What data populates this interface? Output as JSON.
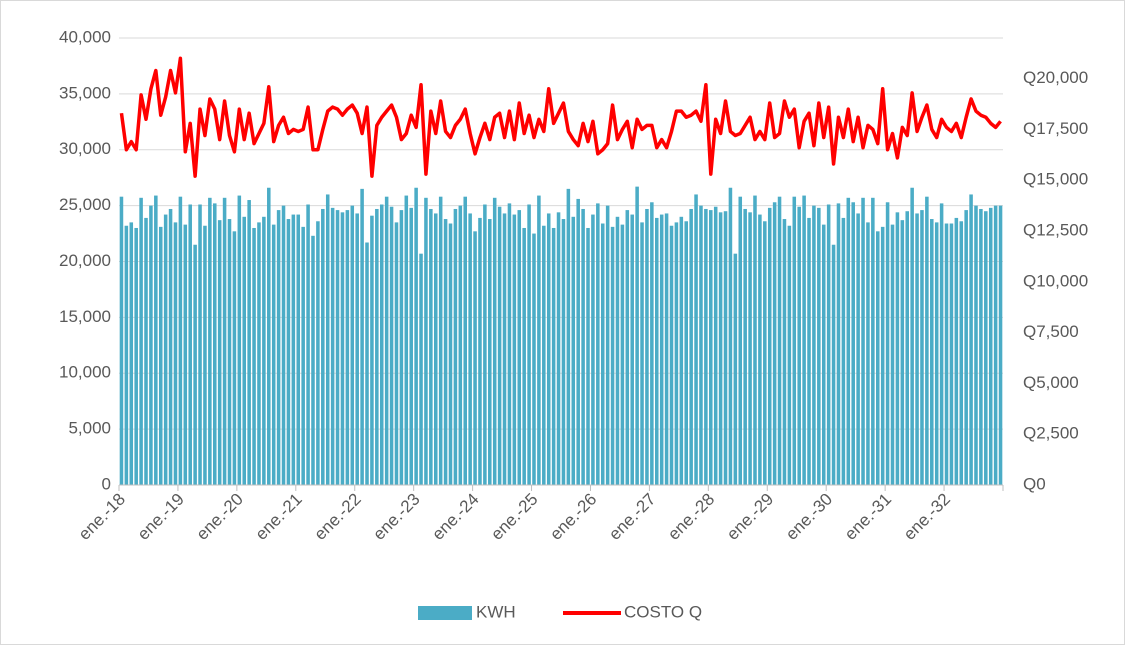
{
  "chart_data": {
    "type": "bar_line",
    "categories": [
      "ene.-18",
      null,
      null,
      null,
      null,
      null,
      null,
      null,
      null,
      null,
      null,
      null,
      "ene.-19",
      null,
      null,
      null,
      null,
      null,
      null,
      null,
      null,
      null,
      null,
      null,
      "ene.-20",
      null,
      null,
      null,
      null,
      null,
      null,
      null,
      null,
      null,
      null,
      null,
      "ene.-21",
      null,
      null,
      null,
      null,
      null,
      null,
      null,
      null,
      null,
      null,
      null,
      "ene.-22",
      null,
      null,
      null,
      null,
      null,
      null,
      null,
      null,
      null,
      null,
      null,
      "ene.-23",
      null,
      null,
      null,
      null,
      null,
      null,
      null,
      null,
      null,
      null,
      null,
      "ene.-24",
      null,
      null,
      null,
      null,
      null,
      null,
      null,
      null,
      null,
      null,
      null,
      "ene.-25",
      null,
      null,
      null,
      null,
      null,
      null,
      null,
      null,
      null,
      null,
      null,
      "ene.-26",
      null,
      null,
      null,
      null,
      null,
      null,
      null,
      null,
      null,
      null,
      null,
      "ene.-27",
      null,
      null,
      null,
      null,
      null,
      null,
      null,
      null,
      null,
      null,
      null,
      "ene.-28",
      null,
      null,
      null,
      null,
      null,
      null,
      null,
      null,
      null,
      null,
      null,
      "ene.-29",
      null,
      null,
      null,
      null,
      null,
      null,
      null,
      null,
      null,
      null,
      null,
      "ene.-30",
      null,
      null,
      null,
      null,
      null,
      null,
      null,
      null,
      null,
      null,
      null,
      "ene.-31",
      null,
      null,
      null,
      null,
      null,
      null,
      null,
      null,
      null,
      null,
      null,
      "ene.-32",
      null,
      null,
      null,
      null,
      null,
      null,
      null,
      null,
      null,
      null,
      null
    ],
    "series": [
      {
        "name": "KWH",
        "type": "bar",
        "color": "#4bacc6",
        "values": [
          25800,
          23200,
          23500,
          23000,
          25700,
          23900,
          25000,
          25900,
          23100,
          24200,
          24700,
          23500,
          25800,
          23300,
          25100,
          21500,
          25100,
          23200,
          25700,
          25200,
          23700,
          25700,
          23800,
          22700,
          25900,
          24000,
          25500,
          23000,
          23500,
          24000,
          26600,
          23300,
          24600,
          25000,
          23800,
          24200,
          24200,
          23100,
          25100,
          22300,
          23600,
          24700,
          26000,
          24800,
          24600,
          24400,
          24600,
          25000,
          24300,
          26500,
          21700,
          24100,
          24700,
          25100,
          25800,
          24900,
          23500,
          24600,
          25900,
          24800,
          26600,
          20700,
          25700,
          24700,
          24300,
          25800,
          23800,
          23400,
          24700,
          25000,
          25800,
          24300,
          22700,
          23900,
          25100,
          23800,
          25700,
          24900,
          24300,
          25200,
          24200,
          24600,
          23000,
          25100,
          22500,
          25900,
          23200,
          24300,
          23000,
          24400,
          23800,
          26500,
          24000,
          25600,
          24700,
          23000,
          24200,
          25200,
          23400,
          25000,
          23100,
          24000,
          23300,
          24600,
          24200,
          26700,
          23500,
          24700,
          25300,
          23900,
          24200,
          24300,
          23200,
          23500,
          24000,
          23600,
          24700,
          26000,
          25000,
          24700,
          24600,
          24900,
          24400,
          24500,
          26600,
          20700,
          25800,
          24700,
          24400,
          25900,
          24200,
          23600,
          24800,
          25300,
          25800,
          23800,
          23200,
          25800,
          24900,
          25900,
          23900,
          25000,
          24800,
          23300,
          25100,
          21500,
          25200,
          23900,
          25700,
          25300,
          24300,
          25700,
          23500,
          25700,
          22700,
          23100,
          25300,
          23300,
          24400,
          23700,
          24500,
          26600,
          24300,
          24600,
          25800,
          23800,
          23500,
          25200,
          23400,
          23400,
          23900,
          23600,
          24600,
          26000,
          25000,
          24700,
          24500,
          24800,
          25000,
          25000
        ]
      },
      {
        "name": "COSTO Q",
        "type": "line",
        "axis": "y2",
        "color": "#ff0000",
        "values": [
          18300,
          16500,
          16900,
          16500,
          19200,
          18000,
          19500,
          20400,
          18200,
          19100,
          20400,
          19300,
          21000,
          16400,
          17800,
          15200,
          18500,
          17200,
          19000,
          18500,
          17000,
          18900,
          17200,
          16400,
          18500,
          17000,
          18300,
          16800,
          17300,
          17800,
          19600,
          16900,
          17700,
          18100,
          17300,
          17500,
          17400,
          17500,
          18600,
          16500,
          16500,
          17500,
          18400,
          18600,
          18500,
          18200,
          18500,
          18700,
          18300,
          17300,
          18600,
          15200,
          17700,
          18100,
          18400,
          18700,
          18100,
          17000,
          17300,
          18200,
          17600,
          19700,
          15300,
          18400,
          17300,
          18900,
          17400,
          17100,
          17700,
          18000,
          18500,
          17300,
          16300,
          17100,
          17800,
          17000,
          18100,
          18300,
          17100,
          18400,
          17000,
          18800,
          17300,
          18200,
          17100,
          18000,
          17400,
          19500,
          17800,
          18300,
          18800,
          17400,
          17000,
          16700,
          17800,
          16900,
          17900,
          16300,
          16500,
          16800,
          18700,
          17000,
          17500,
          17900,
          16600,
          18000,
          17500,
          17700,
          17700,
          16600,
          17000,
          16600,
          17400,
          18400,
          18400,
          18100,
          18200,
          18400,
          17900,
          19700,
          15300,
          18000,
          17300,
          18900,
          17400,
          17200,
          17300,
          17700,
          18100,
          17000,
          17400,
          17000,
          18800,
          17100,
          17300,
          18900,
          18100,
          18500,
          16600,
          17900,
          18300,
          16700,
          18800,
          17100,
          18600,
          15800,
          18100,
          17100,
          18500,
          16900,
          18100,
          16600,
          17700,
          17500,
          16800,
          19500,
          16500,
          17300,
          16100,
          17600,
          17200,
          19300,
          17400,
          18100,
          18700,
          17500,
          17100,
          18000,
          17600,
          17400,
          17800,
          17100,
          18100,
          19000,
          18400,
          18200,
          18100,
          17800,
          17600,
          17900
        ]
      }
    ],
    "ylim": [
      0,
      40000
    ],
    "yticks": [
      0,
      {
        "value": 5000,
        "label": "5,000"
      },
      {
        "value": 10000,
        "label": "10,000"
      },
      {
        "value": 15000,
        "label": "15,000"
      },
      {
        "value": 20000,
        "label": "20,000"
      },
      {
        "value": 25000,
        "label": "25,000"
      },
      {
        "value": 30000,
        "label": "30,000"
      },
      {
        "value": 35000,
        "label": "35,000"
      },
      {
        "value": 40000,
        "label": "40,000"
      }
    ],
    "y2lim": [
      0,
      22000
    ],
    "y2ticks": [
      {
        "value": 0,
        "label": "Q0"
      },
      {
        "value": 2500,
        "label": "Q2,500"
      },
      {
        "value": 5000,
        "label": "Q5,000"
      },
      {
        "value": 7500,
        "label": "Q7,500"
      },
      {
        "value": 10000,
        "label": "Q10,000"
      },
      {
        "value": 12500,
        "label": "Q12,500"
      },
      {
        "value": 15000,
        "label": "Q15,000"
      },
      {
        "value": 17500,
        "label": "Q17,500"
      },
      {
        "value": 20000,
        "label": "Q20,000"
      }
    ],
    "grid": true,
    "legend": "bottom"
  }
}
